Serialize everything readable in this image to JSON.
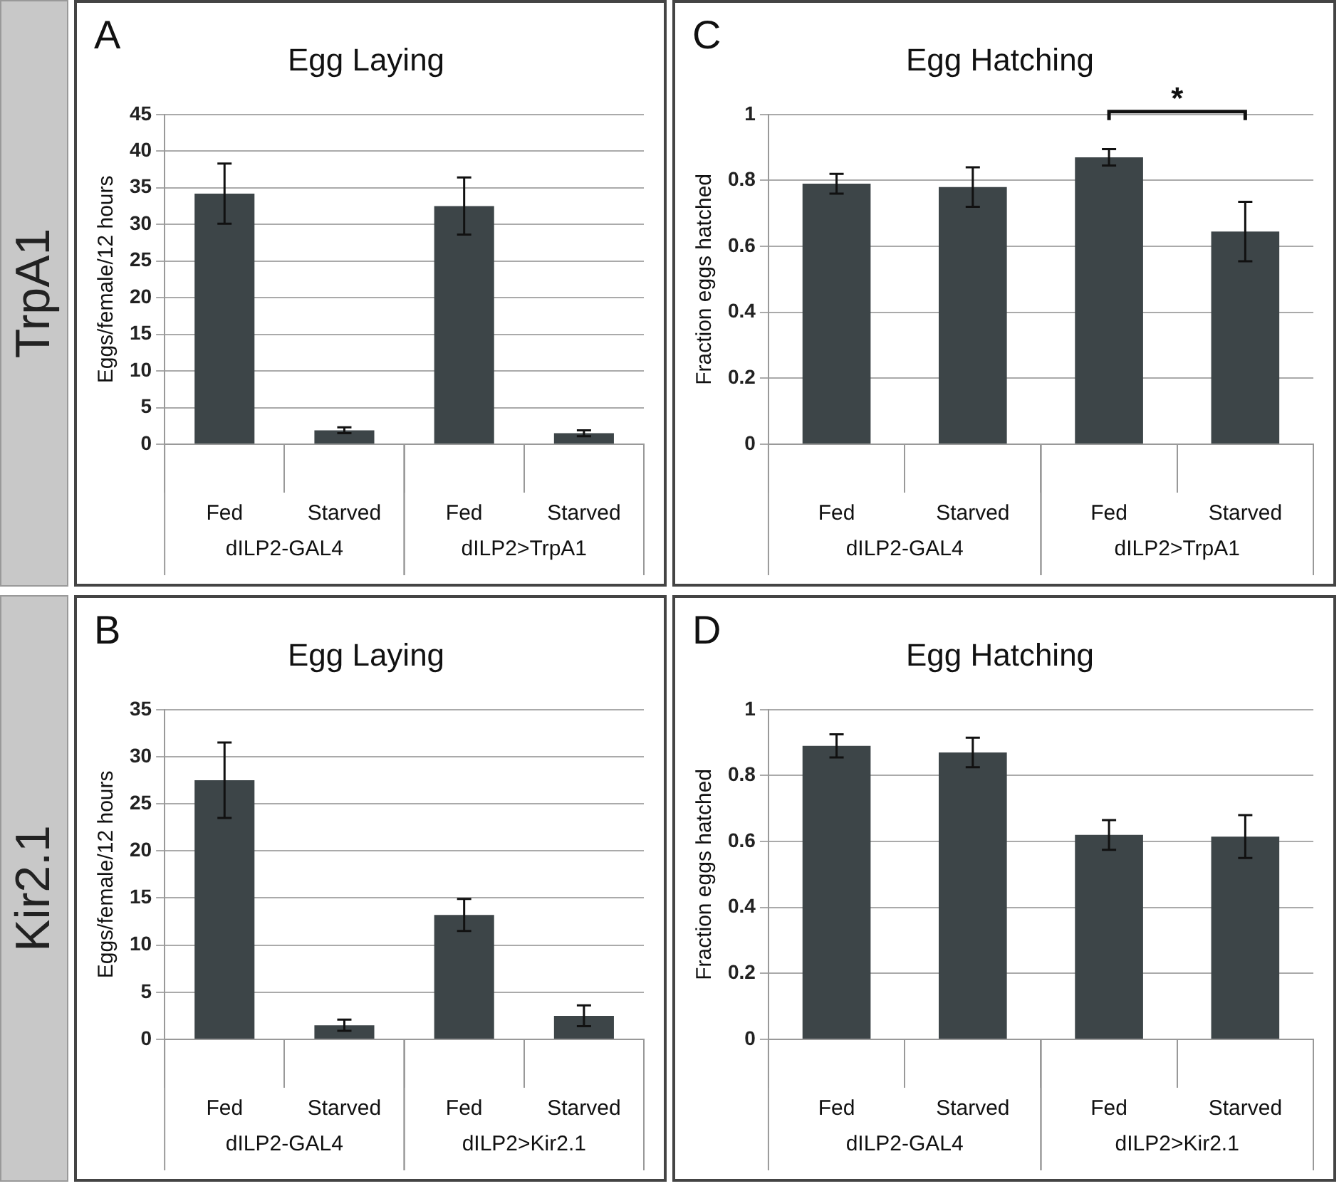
{
  "chart_data": [
    {
      "type": "bar",
      "title": "Egg Laying",
      "ylabel": "Eggs/female/12 hours",
      "categories": [
        "Fed",
        "Starved",
        "Fed",
        "Starved"
      ],
      "values": [
        34.2,
        1.9,
        32.5,
        1.5
      ],
      "errors": [
        4.1,
        0.4,
        3.9,
        0.4
      ],
      "color": "#3d4548",
      "ylim": [
        0,
        45
      ],
      "yticks": [
        0,
        5,
        10,
        15,
        20,
        25,
        30,
        35,
        40,
        45
      ],
      "grid": "y",
      "legend": false,
      "annotations": [
        "A",
        "dILP2-GAL4",
        "dILP2>TrpA1",
        "TrpA1"
      ]
    },
    {
      "type": "bar",
      "title": "Egg Hatching",
      "ylabel": "Fraction eggs hatched",
      "categories": [
        "Fed",
        "Starved",
        "Fed",
        "Starved"
      ],
      "values": [
        0.79,
        0.78,
        0.87,
        0.645
      ],
      "errors": [
        0.03,
        0.06,
        0.025,
        0.09
      ],
      "color": "#3d4548",
      "ylim": [
        0,
        1
      ],
      "yticks": [
        0,
        0.2,
        0.4,
        0.6,
        0.8,
        1
      ],
      "grid": "y",
      "legend": false,
      "annotations": [
        "C",
        "dILP2-GAL4",
        "dILP2>TrpA1",
        "*"
      ]
    },
    {
      "type": "bar",
      "title": "Egg Laying",
      "ylabel": "Eggs/female/12 hours",
      "categories": [
        "Fed",
        "Starved",
        "Fed",
        "Starved"
      ],
      "values": [
        27.5,
        1.5,
        13.2,
        2.5
      ],
      "errors": [
        4,
        0.6,
        1.7,
        1.1
      ],
      "color": "#3d4548",
      "ylim": [
        0,
        35
      ],
      "yticks": [
        0,
        5,
        10,
        15,
        20,
        25,
        30,
        35
      ],
      "grid": "y",
      "legend": false,
      "annotations": [
        "B",
        "dILP2-GAL4",
        "dILP2>Kir2.1",
        "Kir2.1"
      ]
    },
    {
      "type": "bar",
      "title": "Egg Hatching",
      "ylabel": "Fraction eggs hatched",
      "categories": [
        "Fed",
        "Starved",
        "Fed",
        "Starved"
      ],
      "values": [
        0.89,
        0.87,
        0.62,
        0.615
      ],
      "errors": [
        0.035,
        0.045,
        0.045,
        0.065
      ],
      "color": "#3d4548",
      "ylim": [
        0,
        1
      ],
      "yticks": [
        0,
        0.2,
        0.4,
        0.6,
        0.8,
        1
      ],
      "grid": "y",
      "legend": false,
      "annotations": [
        "D",
        "dILP2-GAL4",
        "dILP2>Kir2.1"
      ]
    }
  ]
}
